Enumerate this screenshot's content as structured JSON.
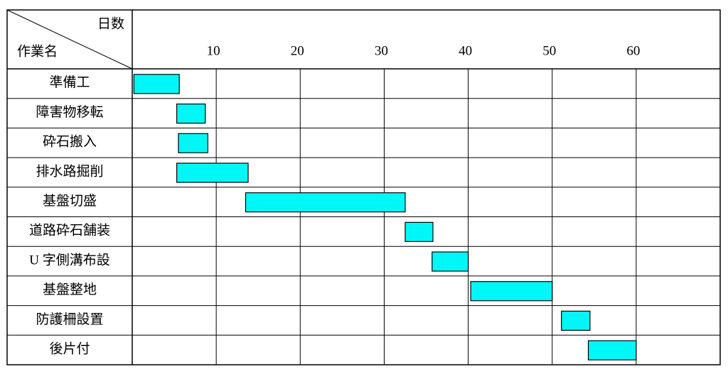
{
  "chart_data": {
    "type": "gantt",
    "value_header": "日数",
    "category_header": "作業名",
    "categories": [
      "準備工",
      "障害物移転",
      "砕石搬入",
      "排水路掘削",
      "基盤切盛",
      "道路砕石舗装",
      "U 字側溝布設",
      "基盤整地",
      "防護柵設置",
      "後片付"
    ],
    "start": [
      0.2,
      5.3,
      5.5,
      5.3,
      13.5,
      32.5,
      35.7,
      40.3,
      51.1,
      54.3
    ],
    "end": [
      5.6,
      8.7,
      9.0,
      13.8,
      32.5,
      35.8,
      40.0,
      50.0,
      54.5,
      60.0
    ],
    "color": "#00f7f7",
    "xlim": [
      0,
      70
    ],
    "xticks": [
      10,
      20,
      30,
      40,
      50,
      60
    ],
    "grid": true
  }
}
